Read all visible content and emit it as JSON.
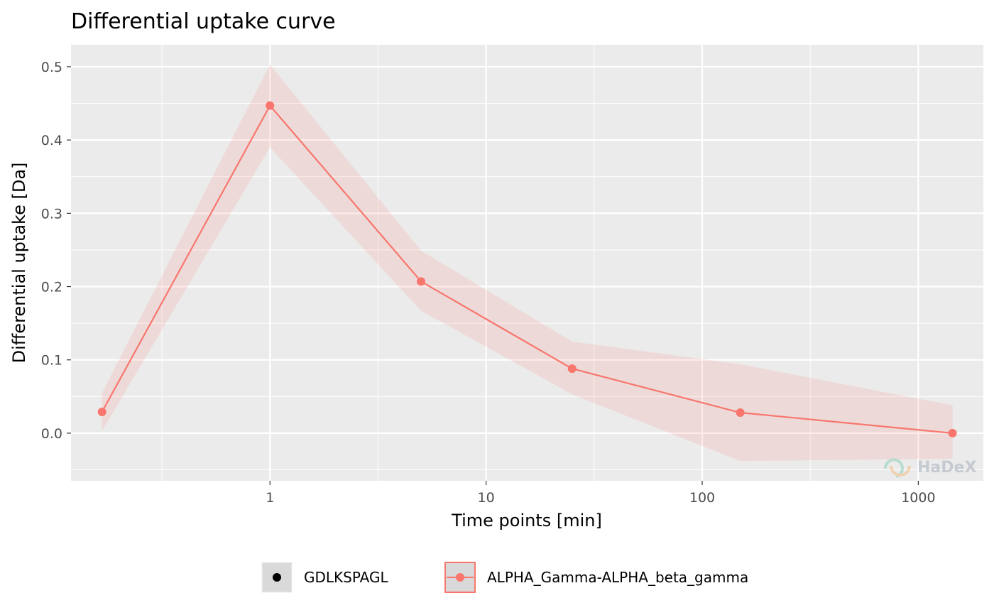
{
  "chart_data": {
    "type": "line",
    "title": "Differential uptake curve",
    "xlabel": "Time points [min]",
    "ylabel": "Differential uptake [Da]",
    "x_scale": "log10",
    "xlim": [
      0.12,
      2000
    ],
    "ylim": [
      -0.065,
      0.53
    ],
    "x_ticks": [
      1,
      10,
      100,
      1000
    ],
    "x_tick_labels": [
      "1",
      "10",
      "100",
      "1000"
    ],
    "y_ticks": [
      0.0,
      0.1,
      0.2,
      0.3,
      0.4,
      0.5
    ],
    "y_tick_labels": [
      "0.0",
      "0.1",
      "0.2",
      "0.3",
      "0.4",
      "0.5"
    ],
    "grid": true,
    "legend_position": "bottom",
    "series": [
      {
        "name": "ALPHA_Gamma-ALPHA_beta_gamma",
        "color": "#F8766D",
        "x": [
          0.167,
          1,
          5,
          25,
          150,
          1440
        ],
        "y": [
          0.029,
          0.447,
          0.207,
          0.088,
          0.028,
          0.0
        ],
        "band_lower": [
          0.003,
          0.39,
          0.167,
          0.053,
          -0.038,
          -0.035
        ],
        "band_upper": [
          0.055,
          0.503,
          0.249,
          0.125,
          0.094,
          0.038
        ]
      }
    ],
    "legend": [
      {
        "label": "GDLKSPAGL",
        "color": "#000000"
      },
      {
        "label": "ALPHA_Gamma-ALPHA_beta_gamma",
        "color": "#F8766D"
      }
    ],
    "watermark": "HaDeX"
  }
}
